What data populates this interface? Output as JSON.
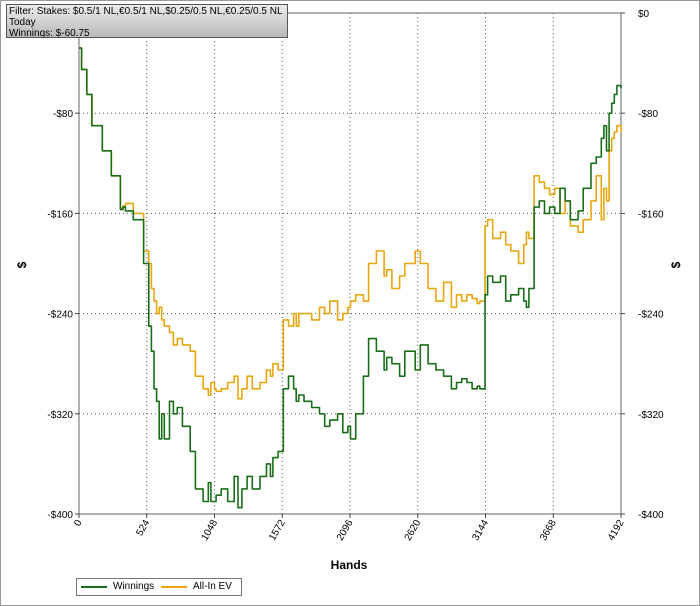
{
  "info": {
    "filter": "Filter: Stakes: $0.5/1 NL,€0.5/1 NL,$0.25/0.5 NL,€0.25/0.5 NL",
    "period": "Today",
    "winnings": "Winnings: $-60.75"
  },
  "chart_data": {
    "type": "line",
    "xlabel": "Hands",
    "ylabel": "$",
    "ylabel_right": "$",
    "xlim": [
      0,
      4192
    ],
    "ylim": [
      -400,
      0
    ],
    "x_ticks": [
      0,
      524,
      1048,
      1572,
      2096,
      2620,
      3144,
      3668,
      4192
    ],
    "x_tick_labels": [
      "0",
      "524",
      "1048",
      "1572",
      "2096",
      "2620",
      "3144",
      "3668",
      "4192"
    ],
    "y_ticks": [
      0,
      -80,
      -160,
      -240,
      -320,
      -400
    ],
    "y_tick_labels": [
      "$0",
      "-$80",
      "-$160",
      "-$240",
      "-$320",
      "-$400"
    ],
    "grid": true,
    "legend_position": "bottom-left",
    "series": [
      {
        "name": "Winnings",
        "color": "#1a6e1a",
        "x": [
          0,
          20,
          60,
          100,
          180,
          250,
          320,
          340,
          360,
          420,
          500,
          540,
          560,
          580,
          600,
          620,
          640,
          660,
          700,
          730,
          760,
          800,
          860,
          900,
          960,
          1000,
          1020,
          1048,
          1060,
          1100,
          1150,
          1200,
          1230,
          1260,
          1300,
          1340,
          1400,
          1450,
          1480,
          1500,
          1540,
          1580,
          1620,
          1660,
          1680,
          1700,
          1740,
          1800,
          1860,
          1900,
          1940,
          2000,
          2040,
          2080,
          2100,
          2140,
          2200,
          2240,
          2300,
          2360,
          2380,
          2420,
          2480,
          2520,
          2600,
          2640,
          2700,
          2760,
          2820,
          2880,
          2920,
          2960,
          3000,
          3040,
          3080,
          3100,
          3140,
          3160,
          3200,
          3260,
          3300,
          3340,
          3400,
          3440,
          3460,
          3480,
          3520,
          3560,
          3600,
          3640,
          3680,
          3720,
          3760,
          3800,
          3860,
          3900,
          3960,
          4000,
          4040,
          4060,
          4080,
          4100,
          4120,
          4140,
          4160,
          4192
        ],
        "y": [
          -28,
          -45,
          -65,
          -90,
          -110,
          -130,
          -157,
          -155,
          -158,
          -165,
          -200,
          -250,
          -270,
          -300,
          -310,
          -340,
          -320,
          -340,
          -310,
          -320,
          -315,
          -330,
          -350,
          -380,
          -390,
          -375,
          -390,
          -390,
          -385,
          -380,
          -390,
          -370,
          -395,
          -380,
          -370,
          -380,
          -370,
          -360,
          -370,
          -355,
          -350,
          -300,
          -290,
          -300,
          -310,
          -305,
          -310,
          -315,
          -320,
          -330,
          -325,
          -320,
          -335,
          -330,
          -340,
          -320,
          -290,
          -260,
          -270,
          -285,
          -275,
          -280,
          -290,
          -270,
          -285,
          -265,
          -280,
          -285,
          -290,
          -300,
          -295,
          -292,
          -295,
          -300,
          -298,
          -300,
          -225,
          -210,
          -215,
          -210,
          -230,
          -225,
          -220,
          -230,
          -235,
          -220,
          -155,
          -150,
          -160,
          -155,
          -160,
          -140,
          -150,
          -165,
          -158,
          -140,
          -120,
          -115,
          -100,
          -90,
          -110,
          -80,
          -72,
          -65,
          -58,
          -60
        ]
      },
      {
        "name": "All-In EV",
        "color": "#e8a60e",
        "x": [
          0,
          20,
          60,
          100,
          180,
          250,
          320,
          340,
          360,
          420,
          500,
          540,
          560,
          580,
          600,
          620,
          640,
          660,
          700,
          730,
          760,
          800,
          860,
          900,
          960,
          1000,
          1020,
          1048,
          1060,
          1100,
          1150,
          1200,
          1230,
          1260,
          1300,
          1340,
          1400,
          1450,
          1480,
          1500,
          1540,
          1580,
          1620,
          1660,
          1680,
          1700,
          1740,
          1800,
          1860,
          1900,
          1940,
          2000,
          2040,
          2080,
          2100,
          2140,
          2200,
          2240,
          2300,
          2360,
          2380,
          2420,
          2480,
          2520,
          2600,
          2640,
          2700,
          2760,
          2820,
          2880,
          2920,
          2960,
          3000,
          3040,
          3080,
          3100,
          3140,
          3160,
          3200,
          3260,
          3300,
          3340,
          3400,
          3440,
          3460,
          3480,
          3520,
          3560,
          3600,
          3640,
          3680,
          3720,
          3760,
          3800,
          3860,
          3900,
          3960,
          4000,
          4040,
          4060,
          4080,
          4100,
          4120,
          4140,
          4160,
          4192
        ],
        "y": [
          -28,
          -45,
          -65,
          -90,
          -110,
          -130,
          -156,
          -154,
          -152,
          -160,
          -190,
          -200,
          -220,
          -230,
          -240,
          -235,
          -245,
          -250,
          -255,
          -265,
          -260,
          -265,
          -270,
          -290,
          -300,
          -305,
          -295,
          -300,
          -302,
          -300,
          -295,
          -290,
          -308,
          -300,
          -290,
          -300,
          -295,
          -285,
          -290,
          -280,
          -285,
          -245,
          -250,
          -240,
          -250,
          -240,
          -240,
          -245,
          -235,
          -240,
          -230,
          -245,
          -240,
          -235,
          -230,
          -225,
          -230,
          -200,
          -190,
          -210,
          -205,
          -220,
          -210,
          -200,
          -190,
          -200,
          -220,
          -230,
          -215,
          -235,
          -225,
          -230,
          -225,
          -228,
          -232,
          -230,
          -170,
          -165,
          -180,
          -175,
          -185,
          -190,
          -200,
          -185,
          -175,
          -180,
          -130,
          -135,
          -140,
          -145,
          -140,
          -160,
          -150,
          -170,
          -175,
          -165,
          -150,
          -130,
          -165,
          -140,
          -150,
          -110,
          -100,
          -95,
          -90,
          -95
        ]
      }
    ]
  },
  "legend": {
    "items": [
      {
        "label": "Winnings",
        "color": "#1a6e1a"
      },
      {
        "label": "All-In EV",
        "color": "#e8a60e"
      }
    ]
  }
}
